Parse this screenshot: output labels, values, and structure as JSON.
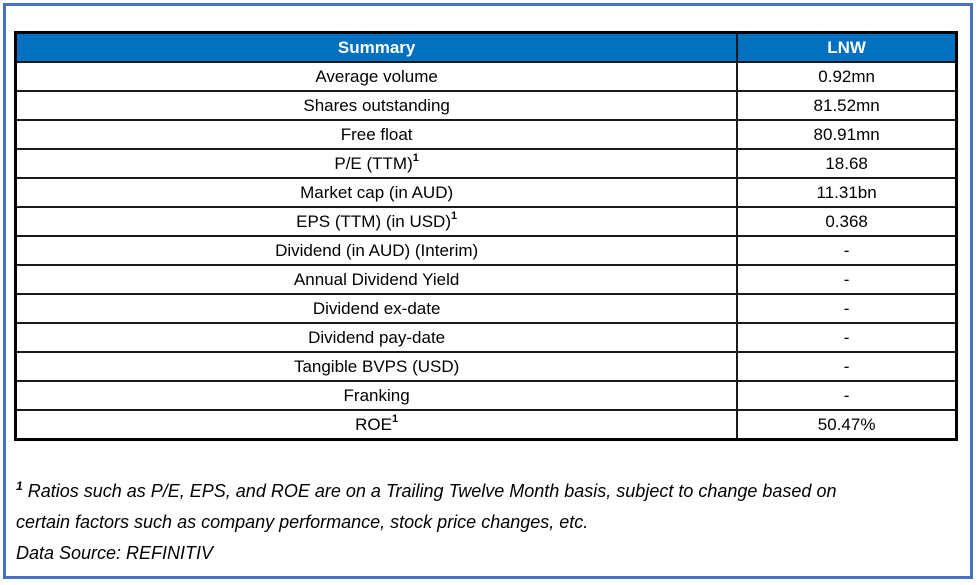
{
  "frame": {
    "border_color": "#4472C4"
  },
  "table": {
    "header": {
      "summary_label": "Summary",
      "value_label": "LNW",
      "bg_color": "#0070C0",
      "text_color": "#FFFFFF"
    },
    "rows": [
      {
        "label": "Average volume",
        "sup": "",
        "value": "0.92mn"
      },
      {
        "label": "Shares outstanding",
        "sup": "",
        "value": "81.52mn"
      },
      {
        "label": "Free float",
        "sup": "",
        "value": "80.91mn"
      },
      {
        "label": "P/E (TTM)",
        "sup": "1",
        "value": "18.68"
      },
      {
        "label": "Market cap (in AUD)",
        "sup": "",
        "value": "11.31bn"
      },
      {
        "label": "EPS (TTM) (in USD)",
        "sup": "1",
        "value": "0.368"
      },
      {
        "label": "Dividend (in AUD) (Interim)",
        "sup": "",
        "value": "-"
      },
      {
        "label": "Annual Dividend Yield",
        "sup": "",
        "value": "-"
      },
      {
        "label": "Dividend ex-date",
        "sup": "",
        "value": "-"
      },
      {
        "label": "Dividend pay-date",
        "sup": "",
        "value": "-"
      },
      {
        "label": "Tangible BVPS (USD)",
        "sup": "",
        "value": "-"
      },
      {
        "label": "Franking",
        "sup": "",
        "value": "-"
      },
      {
        "label": "ROE",
        "sup": "1",
        "value": "50.47%"
      }
    ]
  },
  "footnote": {
    "marker": "1",
    "lines": [
      "Ratios such as P/E, EPS,  and ROE are on a Trailing Twelve Month basis, subject to change based on",
      "certain factors such as company performance, stock price changes, etc."
    ],
    "data_source": "Data Source: REFINITIV"
  },
  "chart_data": {
    "type": "table",
    "title": "Summary",
    "columns": [
      "Summary",
      "LNW"
    ],
    "rows": [
      [
        "Average volume",
        "0.92mn"
      ],
      [
        "Shares outstanding",
        "81.52mn"
      ],
      [
        "Free float",
        "80.91mn"
      ],
      [
        "P/E (TTM)1",
        "18.68"
      ],
      [
        "Market cap (in AUD)",
        "11.31bn"
      ],
      [
        "EPS (TTM) (in USD)1",
        "0.368"
      ],
      [
        "Dividend (in AUD) (Interim)",
        "-"
      ],
      [
        "Annual Dividend Yield",
        "-"
      ],
      [
        "Dividend ex-date",
        "-"
      ],
      [
        "Dividend pay-date",
        "-"
      ],
      [
        "Tangible BVPS (USD)",
        "-"
      ],
      [
        "Franking",
        "-"
      ],
      [
        "ROE1",
        "50.47%"
      ]
    ]
  }
}
